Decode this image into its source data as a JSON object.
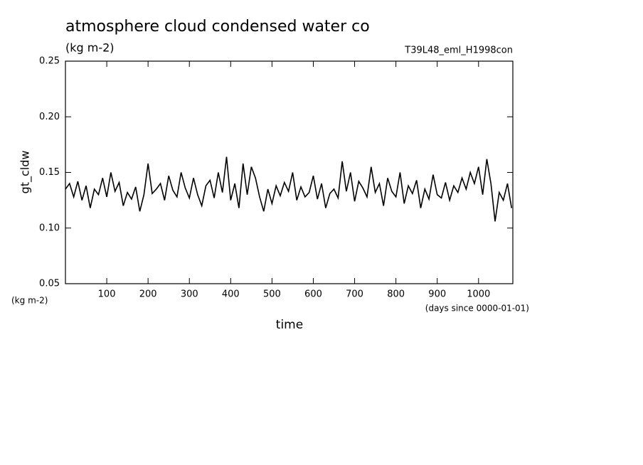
{
  "chart_data": {
    "type": "line",
    "title": "atmosphere cloud condensed water co",
    "subtitle": "(kg m-2)",
    "annotation": "T39L48_eml_H1998con",
    "y_label": "gt_cldw",
    "y_units": "(kg m-2)",
    "x_label": "time",
    "x_units": "(days since 0000-01-01)",
    "x": [
      0,
      10,
      20,
      30,
      40,
      50,
      60,
      70,
      80,
      90,
      100,
      110,
      120,
      130,
      140,
      150,
      160,
      170,
      180,
      190,
      200,
      210,
      220,
      230,
      240,
      250,
      260,
      270,
      280,
      290,
      300,
      310,
      320,
      330,
      340,
      350,
      360,
      370,
      380,
      390,
      400,
      410,
      420,
      430,
      440,
      450,
      460,
      470,
      480,
      490,
      500,
      510,
      520,
      530,
      540,
      550,
      560,
      570,
      580,
      590,
      600,
      610,
      620,
      630,
      640,
      650,
      660,
      670,
      680,
      690,
      700,
      710,
      720,
      730,
      740,
      750,
      760,
      770,
      780,
      790,
      800,
      810,
      820,
      830,
      840,
      850,
      860,
      870,
      880,
      890,
      900,
      910,
      920,
      930,
      940,
      950,
      960,
      970,
      980,
      990,
      1000,
      1010,
      1020,
      1030,
      1040,
      1050,
      1060,
      1070,
      1080
    ],
    "series": [
      {
        "color": "#000000",
        "values": [
          0.135,
          0.14,
          0.128,
          0.142,
          0.125,
          0.138,
          0.118,
          0.135,
          0.13,
          0.145,
          0.128,
          0.15,
          0.133,
          0.141,
          0.12,
          0.132,
          0.126,
          0.137,
          0.115,
          0.13,
          0.158,
          0.131,
          0.135,
          0.14,
          0.125,
          0.147,
          0.134,
          0.128,
          0.15,
          0.136,
          0.127,
          0.145,
          0.13,
          0.12,
          0.138,
          0.143,
          0.127,
          0.15,
          0.132,
          0.164,
          0.125,
          0.14,
          0.118,
          0.158,
          0.13,
          0.155,
          0.145,
          0.128,
          0.115,
          0.135,
          0.122,
          0.138,
          0.129,
          0.141,
          0.133,
          0.15,
          0.125,
          0.137,
          0.128,
          0.132,
          0.147,
          0.126,
          0.14,
          0.118,
          0.131,
          0.135,
          0.127,
          0.16,
          0.133,
          0.15,
          0.124,
          0.142,
          0.136,
          0.128,
          0.155,
          0.132,
          0.14,
          0.12,
          0.145,
          0.133,
          0.128,
          0.15,
          0.122,
          0.138,
          0.131,
          0.143,
          0.118,
          0.135,
          0.126,
          0.148,
          0.13,
          0.127,
          0.141,
          0.125,
          0.138,
          0.132,
          0.145,
          0.135,
          0.15,
          0.14,
          0.155,
          0.13,
          0.162,
          0.14,
          0.106,
          0.132,
          0.125,
          0.14,
          0.118
        ]
      }
    ],
    "xlim": [
      0,
      1083
    ],
    "xticks": [
      100,
      200,
      300,
      400,
      500,
      600,
      700,
      800,
      900,
      1000
    ],
    "ylim": [
      0.05,
      0.25
    ],
    "yticks": [
      0.05,
      {
        "value": 0.1,
        "label": "0.10"
      },
      0.15,
      {
        "value": 0.2,
        "label": "0.20"
      },
      0.25
    ]
  }
}
